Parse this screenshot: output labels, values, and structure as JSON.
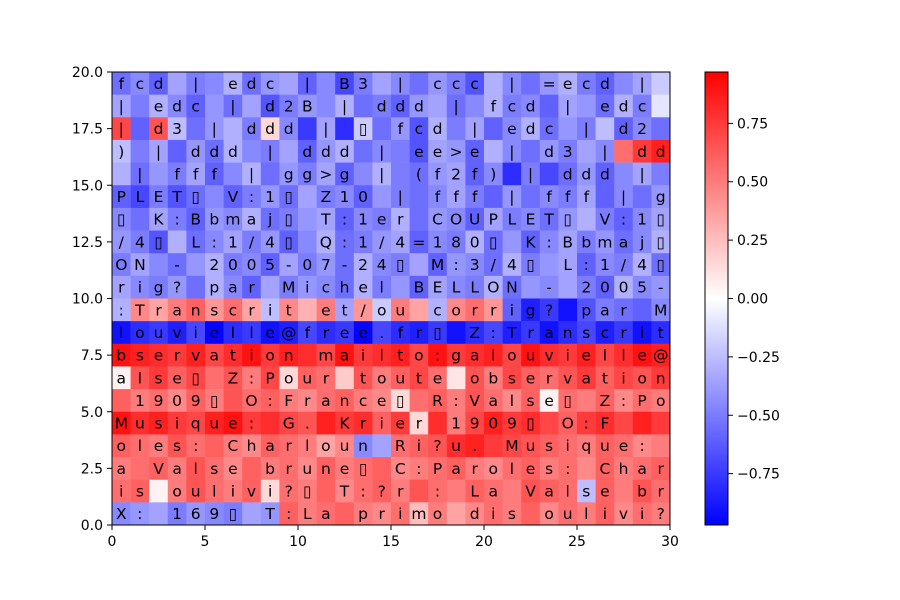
{
  "chart_data": {
    "type": "heatmap",
    "title": "",
    "xlabel": "",
    "ylabel": "",
    "xlim": [
      0,
      30
    ],
    "ylim": [
      0,
      20
    ],
    "x_ticks": [
      0,
      5,
      10,
      15,
      20,
      25,
      30
    ],
    "y_ticks": [
      0.0,
      2.5,
      5.0,
      7.5,
      10.0,
      12.5,
      15.0,
      17.5,
      20.0
    ],
    "y_tick_labels": [
      "0.0",
      "2.5",
      "5.0",
      "7.5",
      "10.0",
      "12.5",
      "15.0",
      "17.5",
      "20.0"
    ],
    "colormap": "bwr",
    "color_low": "#0000ff",
    "color_mid": "#ffffff",
    "color_high": "#ff0000",
    "vmin": -0.97,
    "vmax": 0.97,
    "colorbar_ticks": [
      -0.75,
      -0.5,
      -0.25,
      0.0,
      0.25,
      0.5,
      0.75
    ],
    "colorbar_tick_labels": [
      "−0.75",
      "−0.50",
      "−0.25",
      "0.00",
      "0.25",
      "0.50",
      "0.75"
    ],
    "row_text_top_to_bottom": [
      "fcd | edc | B3 | ccc | =ecd |",
      "| edc | d2B | ddd | fcd | edc ",
      "| d3 | ddd | ▯ fcd | edc | d2",
      ") | ddd | ddd | ee>e | d3 | dd",
      " | fff | gg>g | (f2f) | ddd | ",
      "PLET▯ V:1▯ Z10 | fff | fff | g",
      "▯ K:Bbmaj▯ T:1er COUPLET▯ V:1▯",
      "/4▯ L:1/4▯ Q:1/4=180▯ K:Bbmaj▯",
      "ON - 2005-07-24▯ M:3/4▯ L:1/4▯",
      "rig? par Michel BELLON - 2005-",
      ":Transcrit et/ou corrig? par M",
      "louvielle@free.fr▯ Z:Transcrit",
      "bservation mailto:galouvielle@",
      "alse▯ Z:Pour toute observation",
      " 1909▯ O:France▯ R:Valse▯ Z:Po",
      "Musique: G. Krier 1909▯ O:F",
      "oles: Charloun Ri?u. Musique:",
      "a Valse brune▯ C:Paroles: Char",
      "is oulivi?▯ T:?r : La Valse br",
      "X: 169▯ T:La primo dis oulivi?"
    ],
    "row_values_top_to_bottom": [
      [
        -0.55,
        -0.45,
        -0.6,
        -0.35,
        -0.5,
        -0.45,
        -0.3,
        -0.55,
        -0.4,
        -0.35,
        -0.6,
        -0.45,
        -0.7,
        -0.5,
        -0.35,
        -0.45,
        -0.55,
        -0.4,
        -0.5,
        -0.65,
        -0.3,
        -0.45,
        -0.55,
        -0.4,
        -0.3,
        -0.5,
        -0.6,
        -0.45,
        -0.35,
        -0.2
      ],
      [
        -0.35,
        -0.5,
        -0.3,
        -0.45,
        -0.6,
        -0.4,
        -0.55,
        -0.35,
        -0.65,
        -0.5,
        -0.4,
        -0.45,
        -0.3,
        -0.55,
        -0.5,
        -0.6,
        -0.4,
        -0.35,
        -0.55,
        -0.45,
        -0.3,
        -0.5,
        -0.45,
        -0.6,
        -0.35,
        -0.4,
        -0.55,
        -0.3,
        -0.5,
        -0.1
      ],
      [
        0.7,
        -0.6,
        0.65,
        -0.25,
        -0.55,
        -0.4,
        -0.3,
        -0.5,
        0.15,
        -0.45,
        -0.75,
        -0.35,
        -0.8,
        -0.2,
        -0.55,
        -0.4,
        -0.65,
        -0.3,
        -0.5,
        -0.35,
        -0.6,
        -0.45,
        -0.3,
        -0.55,
        -0.4,
        -0.5,
        -0.25,
        -0.6,
        -0.45,
        -0.55
      ],
      [
        -0.25,
        -0.5,
        -0.35,
        -0.6,
        -0.4,
        -0.55,
        -0.3,
        -0.45,
        -0.5,
        -0.35,
        -0.6,
        -0.4,
        -0.3,
        -0.55,
        -0.45,
        -0.5,
        -0.65,
        -0.35,
        -0.4,
        -0.6,
        -0.3,
        -0.45,
        -0.55,
        -0.4,
        -0.5,
        -0.35,
        -0.45,
        0.55,
        0.75,
        0.85
      ],
      [
        -0.3,
        -0.55,
        -0.4,
        -0.5,
        -0.35,
        -0.6,
        -0.45,
        -0.3,
        -0.55,
        -0.4,
        -0.5,
        -0.35,
        -0.6,
        -0.45,
        -0.3,
        -0.5,
        -0.55,
        -0.4,
        -0.35,
        -0.6,
        -0.45,
        -0.8,
        -0.5,
        -0.7,
        -0.55,
        -0.4,
        -0.6,
        -0.45,
        -0.35,
        -0.5
      ],
      [
        -0.6,
        -0.7,
        -0.5,
        -0.65,
        -0.55,
        -0.45,
        -0.6,
        -0.5,
        -0.4,
        -0.55,
        -0.35,
        -0.5,
        -0.45,
        -0.6,
        -0.4,
        -0.5,
        -0.55,
        -0.45,
        -0.35,
        -0.5,
        -0.6,
        -0.4,
        -0.55,
        -0.45,
        -0.5,
        -0.35,
        -0.6,
        -0.45,
        -0.55,
        -0.4
      ],
      [
        -0.45,
        -0.55,
        -0.35,
        -0.5,
        -0.6,
        -0.4,
        -0.45,
        -0.3,
        -0.55,
        -0.5,
        -0.4,
        -0.35,
        -0.6,
        -0.45,
        -0.5,
        -0.3,
        -0.55,
        -0.4,
        -0.45,
        -0.6,
        -0.35,
        -0.5,
        -0.45,
        -0.55,
        -0.4,
        -0.3,
        -0.5,
        -0.6,
        -0.45,
        -0.35
      ],
      [
        -0.4,
        -0.5,
        -0.65,
        -0.3,
        -0.55,
        -0.45,
        -0.35,
        -0.5,
        -0.4,
        -0.6,
        -0.45,
        -0.3,
        -0.55,
        -0.5,
        -0.4,
        -0.35,
        -0.6,
        -0.45,
        -0.5,
        -0.3,
        -0.55,
        -0.4,
        -0.6,
        -0.45,
        -0.35,
        -0.5,
        -0.4,
        -0.55,
        -0.45,
        -0.3
      ],
      [
        -0.5,
        -0.35,
        -0.45,
        -0.55,
        -0.4,
        -0.3,
        -0.5,
        -0.45,
        -0.6,
        -0.35,
        -0.5,
        -0.4,
        -0.55,
        -0.3,
        -0.45,
        -0.5,
        -0.35,
        -0.6,
        -0.4,
        -0.45,
        -0.55,
        -0.3,
        -0.5,
        -0.4,
        -0.35,
        -0.6,
        -0.45,
        -0.5,
        -0.3,
        -0.55
      ],
      [
        -0.35,
        -0.45,
        -0.5,
        -0.4,
        -0.55,
        -0.3,
        -0.45,
        -0.6,
        -0.35,
        -0.5,
        -0.4,
        -0.45,
        -0.55,
        -0.3,
        -0.5,
        -0.4,
        -0.6,
        -0.35,
        -0.45,
        -0.5,
        -0.3,
        -0.55,
        -0.4,
        -0.45,
        -0.35,
        -0.5,
        -0.6,
        -0.3,
        -0.45,
        -0.4
      ],
      [
        -0.3,
        0.45,
        0.35,
        0.5,
        0.6,
        0.4,
        0.55,
        0.35,
        -0.25,
        0.45,
        0.3,
        0.5,
        -0.35,
        0.4,
        -0.2,
        0.5,
        0.35,
        -0.3,
        0.45,
        0.55,
        0.4,
        -0.6,
        -0.85,
        -0.75,
        -0.9,
        -0.65,
        -0.5,
        -0.55,
        -0.6,
        -0.45
      ],
      [
        -0.9,
        -0.8,
        -0.75,
        -0.85,
        -0.7,
        -0.95,
        -0.8,
        -0.75,
        -0.9,
        -0.85,
        -0.7,
        -0.8,
        -0.75,
        -0.95,
        -0.7,
        -0.8,
        -0.85,
        -0.75,
        -0.9,
        -0.8,
        -0.7,
        -0.85,
        -0.75,
        -0.9,
        -0.8,
        -0.7,
        -0.85,
        -0.75,
        -0.9,
        -0.8
      ],
      [
        0.9,
        0.85,
        0.8,
        0.75,
        0.85,
        0.7,
        0.8,
        0.9,
        0.75,
        0.85,
        0.8,
        0.7,
        0.9,
        0.75,
        0.8,
        0.85,
        0.7,
        0.9,
        0.75,
        0.8,
        0.85,
        0.7,
        0.9,
        0.8,
        0.75,
        0.85,
        0.7,
        0.8,
        0.9,
        0.85
      ],
      [
        0.05,
        0.65,
        0.75,
        0.6,
        0.7,
        0.55,
        0.65,
        0.5,
        0.7,
        0.15,
        0.6,
        0.55,
        0.2,
        0.65,
        0.5,
        0.6,
        0.7,
        0.55,
        0.1,
        0.65,
        0.5,
        0.7,
        0.6,
        0.55,
        0.65,
        0.75,
        0.6,
        0.7,
        0.65,
        0.75
      ],
      [
        0.6,
        0.5,
        0.55,
        0.45,
        0.6,
        0.5,
        0.65,
        0.55,
        0.6,
        0.5,
        0.45,
        0.55,
        0.6,
        0.5,
        0.45,
        0.15,
        0.55,
        0.6,
        0.5,
        0.65,
        0.55,
        0.45,
        0.6,
        0.05,
        0.55,
        0.5,
        0.6,
        0.45,
        0.55,
        0.5
      ],
      [
        0.9,
        0.8,
        0.85,
        0.75,
        0.7,
        0.85,
        0.9,
        0.75,
        0.8,
        0.7,
        0.65,
        0.85,
        0.75,
        0.8,
        0.6,
        0.75,
        0.15,
        0.8,
        0.5,
        0.7,
        0.85,
        0.75,
        0.8,
        0.7,
        0.6,
        0.75,
        0.8,
        0.7,
        0.85,
        0.75
      ],
      [
        0.6,
        0.55,
        0.5,
        0.65,
        0.55,
        0.6,
        0.5,
        0.45,
        0.6,
        0.55,
        0.5,
        0.35,
        0.45,
        -0.45,
        -0.35,
        0.55,
        0.6,
        0.65,
        0.8,
        0.85,
        0.75,
        0.7,
        0.65,
        0.6,
        0.55,
        0.5,
        0.6,
        0.55,
        0.45,
        0.5
      ],
      [
        0.5,
        0.55,
        0.6,
        0.5,
        0.65,
        0.55,
        0.45,
        0.6,
        0.5,
        0.55,
        0.45,
        0.6,
        0.5,
        0.55,
        0.6,
        0.45,
        0.5,
        0.55,
        0.6,
        0.5,
        0.45,
        0.55,
        0.6,
        0.5,
        0.55,
        0.45,
        0.6,
        0.5,
        0.55,
        0.6
      ],
      [
        0.55,
        0.6,
        0.05,
        0.5,
        0.65,
        0.55,
        0.5,
        0.6,
        0.15,
        0.55,
        0.5,
        0.6,
        0.45,
        0.55,
        0.6,
        0.5,
        0.65,
        0.55,
        0.5,
        0.6,
        0.55,
        0.5,
        0.65,
        0.6,
        0.55,
        -0.25,
        0.6,
        0.5,
        0.65,
        0.55
      ],
      [
        -0.45,
        -0.4,
        -0.35,
        -0.5,
        -0.4,
        -0.45,
        -0.5,
        -0.35,
        -0.4,
        0.6,
        0.5,
        0.55,
        0.6,
        0.5,
        0.45,
        0.55,
        0.25,
        0.5,
        0.35,
        0.45,
        0.55,
        0.5,
        0.6,
        0.45,
        0.55,
        0.5,
        0.6,
        0.45,
        0.55,
        0.5
      ]
    ]
  }
}
